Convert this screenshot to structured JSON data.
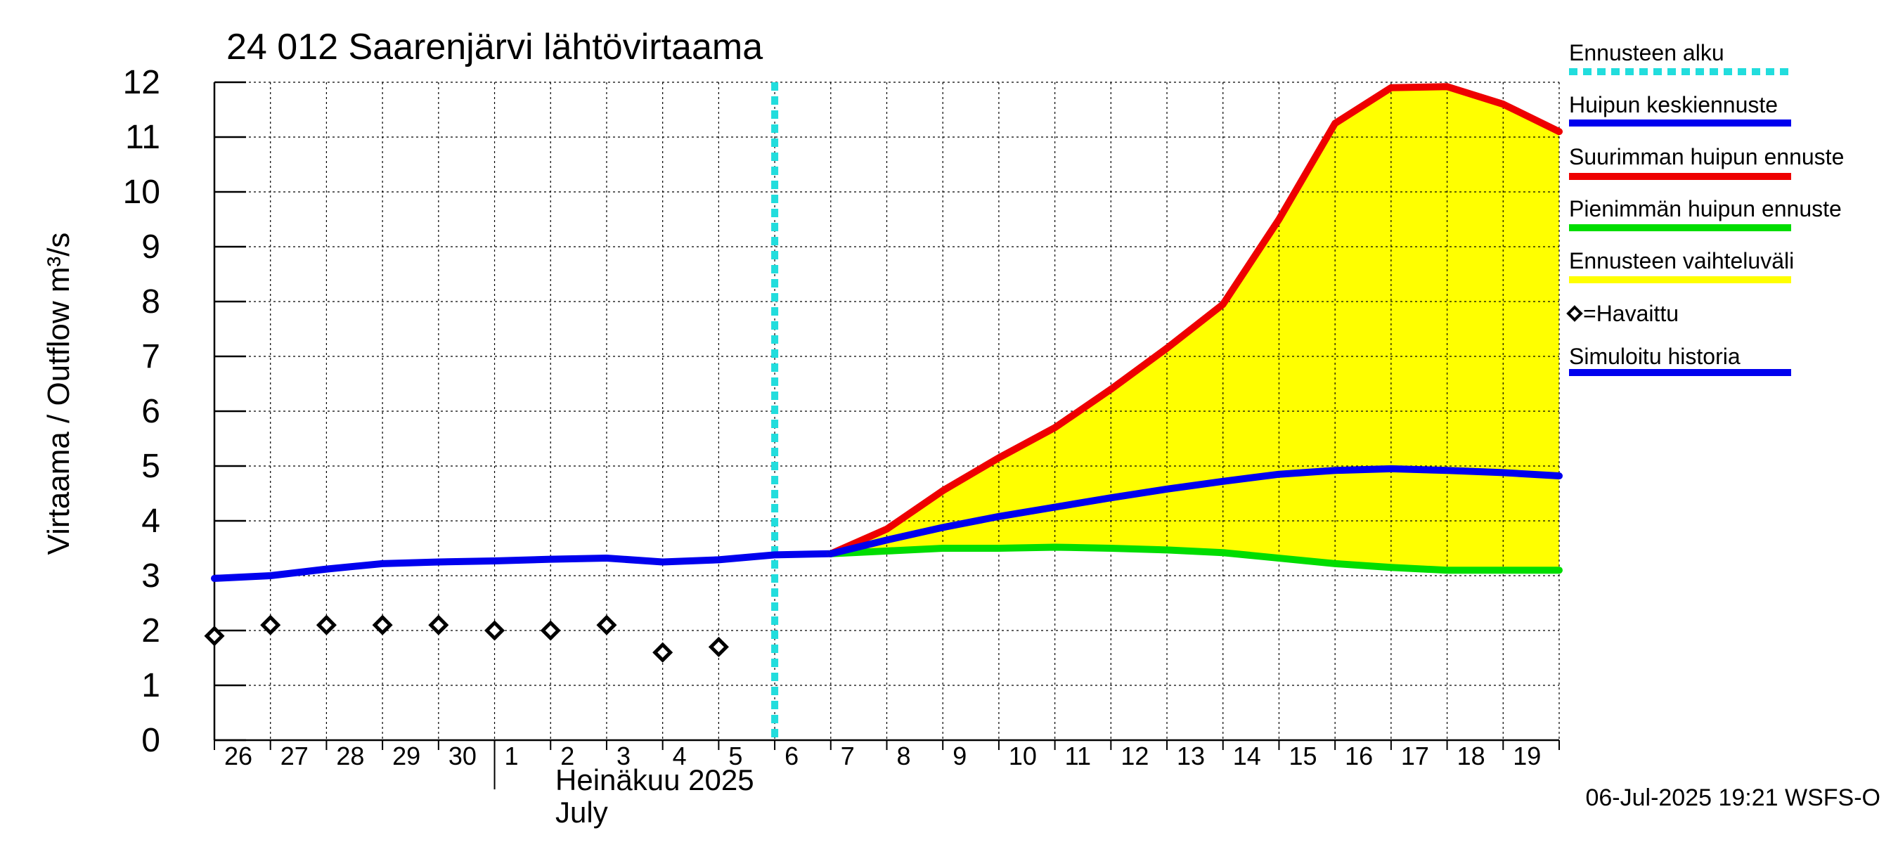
{
  "title": "24 012 Saarenjärvi lähtövirtaama",
  "ylabel": "Virtaama / Outflow    m³/s",
  "footer": "06-Jul-2025 19:21 WSFS-O",
  "month_label": "Heinäkuu  2025",
  "month_label_en": "July",
  "chart_data": {
    "type": "line",
    "title": "24 012 Saarenjärvi lähtövirtaama",
    "ylabel": "Virtaama / Outflow    m³/s",
    "ylim": [
      0,
      12
    ],
    "xlim": [
      0,
      24
    ],
    "x_unit": "days since 2025-06-26 00:00",
    "yticks": [
      0,
      1,
      2,
      3,
      4,
      5,
      6,
      7,
      8,
      9,
      10,
      11,
      12
    ],
    "x_tick_labels": [
      "26",
      "27",
      "28",
      "29",
      "30",
      "1",
      "2",
      "3",
      "4",
      "5",
      "6",
      "7",
      "8",
      "9",
      "10",
      "11",
      "12",
      "13",
      "14",
      "15",
      "16",
      "17",
      "18",
      "19"
    ],
    "grid": true,
    "legend_position": "right",
    "forecast_start_x": 10,
    "series": [
      {
        "name": "Ennusteen vaihteluväli",
        "kind": "band",
        "color": "#ffff00",
        "x": [
          11,
          12,
          13,
          14,
          15,
          16,
          17,
          18,
          19,
          20,
          21,
          22,
          23,
          24
        ],
        "upper": [
          3.4,
          3.9,
          4.55,
          5.15,
          5.7,
          6.4,
          7.15,
          7.95,
          9.5,
          11.25,
          11.9,
          11.92,
          11.6,
          11.1
        ],
        "lower": [
          3.4,
          3.45,
          3.5,
          3.5,
          3.52,
          3.5,
          3.47,
          3.42,
          3.32,
          3.22,
          3.15,
          3.1,
          3.1,
          3.1
        ]
      },
      {
        "name": "Simuloitu historia",
        "kind": "line",
        "color": "#0000ee",
        "x": [
          0,
          1,
          2,
          3,
          4,
          5,
          6,
          7,
          8,
          9,
          10,
          11
        ],
        "y": [
          2.95,
          3.0,
          3.12,
          3.22,
          3.25,
          3.27,
          3.3,
          3.32,
          3.25,
          3.29,
          3.38,
          3.4
        ]
      },
      {
        "name": "Suurimman huipun ennuste",
        "kind": "line",
        "color": "#ee0000",
        "x": [
          11,
          12,
          13,
          14,
          15,
          16,
          17,
          18,
          19,
          20,
          21,
          22,
          23,
          24
        ],
        "y": [
          3.4,
          3.85,
          4.55,
          5.15,
          5.7,
          6.4,
          7.15,
          7.95,
          9.5,
          11.25,
          11.9,
          11.92,
          11.6,
          11.1
        ]
      },
      {
        "name": "Pienimmän huipun ennuste",
        "kind": "line",
        "color": "#00dd00",
        "x": [
          11,
          12,
          13,
          14,
          15,
          16,
          17,
          18,
          19,
          20,
          21,
          22,
          23,
          24
        ],
        "y": [
          3.4,
          3.45,
          3.5,
          3.5,
          3.52,
          3.5,
          3.47,
          3.42,
          3.32,
          3.22,
          3.15,
          3.1,
          3.1,
          3.1
        ]
      },
      {
        "name": "Huipun keskiennuste",
        "kind": "line",
        "color": "#0000ee",
        "x": [
          11,
          12,
          13,
          14,
          15,
          16,
          17,
          18,
          19,
          20,
          21,
          22,
          23,
          24
        ],
        "y": [
          3.4,
          3.65,
          3.88,
          4.08,
          4.25,
          4.42,
          4.58,
          4.72,
          4.85,
          4.92,
          4.95,
          4.92,
          4.88,
          4.82
        ]
      },
      {
        "name": "=Havaittu",
        "kind": "scatter",
        "color": "#000000",
        "x": [
          0,
          1,
          2,
          3,
          4,
          5,
          6,
          7,
          8,
          9
        ],
        "y": [
          1.9,
          2.1,
          2.1,
          2.1,
          2.1,
          2.0,
          2.0,
          2.1,
          1.6,
          1.7
        ]
      }
    ],
    "legend": [
      {
        "label": "Ennusteen alku",
        "color": "#22dddd",
        "style": "dotted"
      },
      {
        "label": "Huipun keskiennuste",
        "color": "#0000ee",
        "style": "solid"
      },
      {
        "label": "Suurimman huipun ennuste",
        "color": "#ee0000",
        "style": "solid"
      },
      {
        "label": "Pienimmän huipun ennuste",
        "color": "#00dd00",
        "style": "solid"
      },
      {
        "label": "Ennusteen vaihteluväli",
        "color": "#ffff00",
        "style": "solid"
      },
      {
        "label": "=Havaittu",
        "color": "#000000",
        "style": "diamond"
      },
      {
        "label": "Simuloitu historia",
        "color": "#0000ee",
        "style": "solid"
      }
    ]
  }
}
